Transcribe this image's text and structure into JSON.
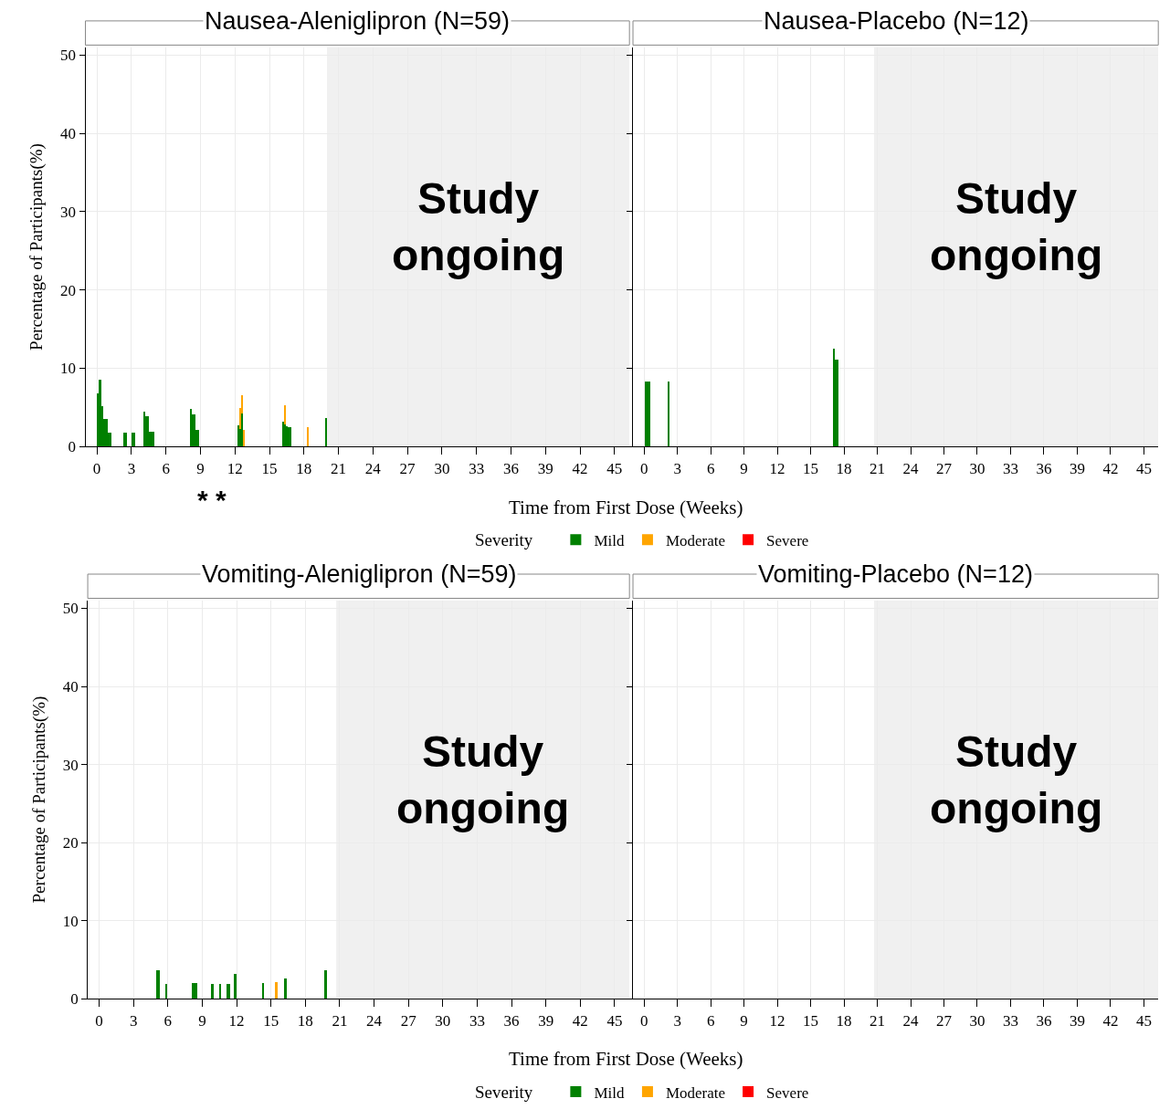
{
  "chart_data": [
    {
      "type": "bar",
      "stacked": true,
      "title": "Nausea-Aleniglipron (N=59)",
      "xlabel": "Time from First Dose (Weeks)",
      "ylabel": "Percentage of Participants(%)",
      "legend": "bottom",
      "legend_title": "Severity",
      "grid": true,
      "xlim": [
        -1,
        46.3
      ],
      "xticks": [
        0,
        3,
        6,
        9,
        12,
        15,
        18,
        21,
        24,
        27,
        30,
        33,
        36,
        39,
        42,
        45
      ],
      "ylim": [
        0,
        51
      ],
      "yticks": [
        0,
        10,
        20,
        30,
        40,
        50
      ],
      "x": [
        0.1,
        0.25,
        0.4,
        0.55,
        0.7,
        0.85,
        1.0,
        1.15,
        2.35,
        2.5,
        3.1,
        3.25,
        4.1,
        4.25,
        4.4,
        4.55,
        4.7,
        4.85,
        8.15,
        8.3,
        8.45,
        8.6,
        8.75,
        12.3,
        12.45,
        12.6,
        12.75,
        16.2,
        16.35,
        16.5,
        16.65,
        16.8,
        18.3,
        19.9
      ],
      "series": [
        {
          "name": "Mild",
          "color": "#008000",
          "values": [
            6.8,
            8.6,
            5.2,
            3.5,
            3.5,
            3.5,
            1.8,
            1.8,
            1.8,
            1.8,
            1.8,
            1.8,
            4.5,
            3.9,
            3.9,
            1.9,
            1.9,
            1.9,
            4.8,
            4.1,
            4.1,
            2.1,
            2.1,
            2.7,
            2.3,
            4.3,
            null,
            3.2,
            2.9,
            2.6,
            2.5,
            2.5,
            null,
            3.7
          ]
        },
        {
          "name": "Moderate",
          "color": "#ffa500",
          "values": [
            null,
            null,
            null,
            null,
            null,
            null,
            null,
            null,
            null,
            null,
            null,
            null,
            null,
            null,
            null,
            null,
            null,
            null,
            null,
            null,
            null,
            null,
            null,
            null,
            2.6,
            2.3,
            2.2,
            null,
            2.4,
            null,
            null,
            null,
            2.5,
            null
          ]
        },
        {
          "name": "Severe",
          "color": "#ff0000",
          "values": [
            null,
            null,
            null,
            null,
            null,
            null,
            null,
            null,
            null,
            null,
            null,
            null,
            null,
            null,
            null,
            null,
            null,
            null,
            null,
            null,
            null,
            null,
            null,
            null,
            null,
            null,
            null,
            null,
            null,
            null,
            null,
            null,
            null,
            null
          ]
        }
      ],
      "bands": [
        {
          "axis": "x",
          "from": 20,
          "to": 46.3,
          "label": "Study\nongoing",
          "color": "#f0f0f0"
        }
      ],
      "annotations": [
        "* *"
      ]
    },
    {
      "type": "bar",
      "title": "Nausea-Placebo (N=12)",
      "grid": true,
      "tick_labels": "x",
      "xlim": [
        -1,
        46.3
      ],
      "xticks": [
        0,
        3,
        6,
        9,
        12,
        15,
        18,
        21,
        24,
        27,
        30,
        33,
        36,
        39,
        42,
        45
      ],
      "ylim": [
        0,
        51
      ],
      "yticks": [
        0,
        10,
        20,
        30,
        40,
        50
      ],
      "x": [
        0.2,
        0.35,
        0.5,
        2.2,
        17.1,
        17.3,
        17.45
      ],
      "series": [
        {
          "color": "#008000",
          "values": [
            8.3,
            8.3,
            8.3,
            8.3,
            12.5,
            11.1,
            11.1
          ]
        }
      ],
      "bands": [
        {
          "axis": "x",
          "from": 20.7,
          "to": 46.3,
          "label": "Study\nongoing",
          "color": "#f0f0f0"
        }
      ]
    },
    {
      "type": "bar",
      "stacked": true,
      "title": "Vomiting-Aleniglipron (N=59)",
      "xlabel": "Time from First Dose (Weeks)",
      "ylabel": "Percentage of Participants(%)",
      "legend": "bottom",
      "legend_title": "Severity",
      "grid": true,
      "xlim": [
        -1,
        46.3
      ],
      "xticks": [
        0,
        3,
        6,
        9,
        12,
        15,
        18,
        21,
        24,
        27,
        30,
        33,
        36,
        39,
        42,
        45
      ],
      "ylim": [
        0,
        51
      ],
      "yticks": [
        0,
        10,
        20,
        30,
        40,
        50
      ],
      "x": [
        5.1,
        5.25,
        5.9,
        8.2,
        8.35,
        8.5,
        9.9,
        10.6,
        11.2,
        11.35,
        11.9,
        14.35,
        15.5,
        16.3,
        19.8
      ],
      "series": [
        {
          "name": "Mild",
          "color": "#008000",
          "values": [
            3.7,
            3.7,
            1.9,
            2.0,
            2.0,
            2.0,
            1.9,
            1.9,
            1.9,
            1.9,
            3.2,
            2.0,
            null,
            2.6,
            3.7
          ]
        },
        {
          "name": "Moderate",
          "color": "#ffa500",
          "values": [
            null,
            null,
            null,
            null,
            null,
            null,
            null,
            null,
            null,
            null,
            null,
            null,
            2.1,
            null,
            null
          ]
        },
        {
          "name": "Severe",
          "color": "#ff0000",
          "values": [
            null,
            null,
            null,
            null,
            null,
            null,
            null,
            null,
            null,
            null,
            null,
            null,
            null,
            null,
            null
          ]
        }
      ],
      "bands": [
        {
          "axis": "x",
          "from": 20.7,
          "to": 46.3,
          "label": "Study\nongoing",
          "color": "#f0f0f0"
        }
      ]
    },
    {
      "type": "bar",
      "title": "Vomiting-Placebo (N=12)",
      "grid": true,
      "tick_labels": "x",
      "xlim": [
        -1,
        46.3
      ],
      "xticks": [
        0,
        3,
        6,
        9,
        12,
        15,
        18,
        21,
        24,
        27,
        30,
        33,
        36,
        39,
        42,
        45
      ],
      "ylim": [
        0,
        51
      ],
      "yticks": [
        0,
        10,
        20,
        30,
        40,
        50
      ],
      "bands": [
        {
          "axis": "x",
          "from": 20.7,
          "to": 46.3,
          "label": "Study\nongoing",
          "color": "#f0f0f0"
        }
      ]
    }
  ]
}
